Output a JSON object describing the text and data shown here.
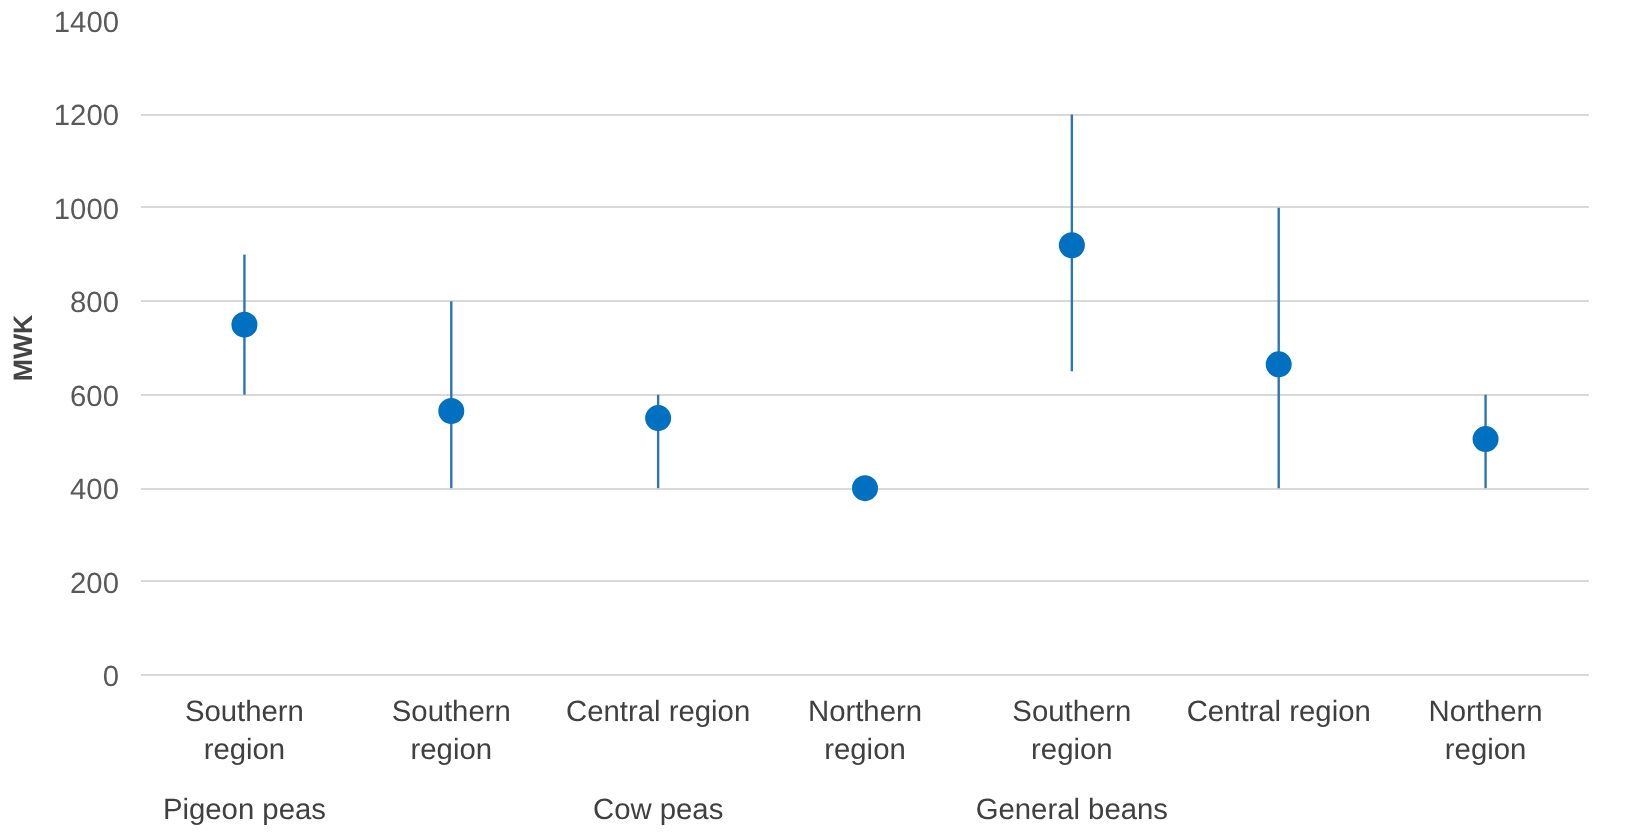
{
  "chart_data": {
    "type": "scatter",
    "ylabel": "MWK",
    "categories": [
      "Southern region",
      "Southern region",
      "Central region",
      "Northern region",
      "Southern region",
      "Central region",
      "Northern region"
    ],
    "values": [
      750,
      565,
      550,
      400,
      920,
      665,
      505
    ],
    "errors": [
      [
        600,
        900
      ],
      [
        400,
        800
      ],
      [
        400,
        600
      ],
      null,
      [
        650,
        1200
      ],
      [
        400,
        1000
      ],
      [
        400,
        600
      ]
    ],
    "color": "#0070c0",
    "marker": "circle",
    "ylim": [
      0,
      1400
    ],
    "yticks": [
      0,
      200,
      400,
      600,
      800,
      1000,
      1200,
      1400
    ],
    "grid": "y",
    "annotations": [
      "Pigeon peas",
      "Cow peas",
      "General beans"
    ]
  }
}
